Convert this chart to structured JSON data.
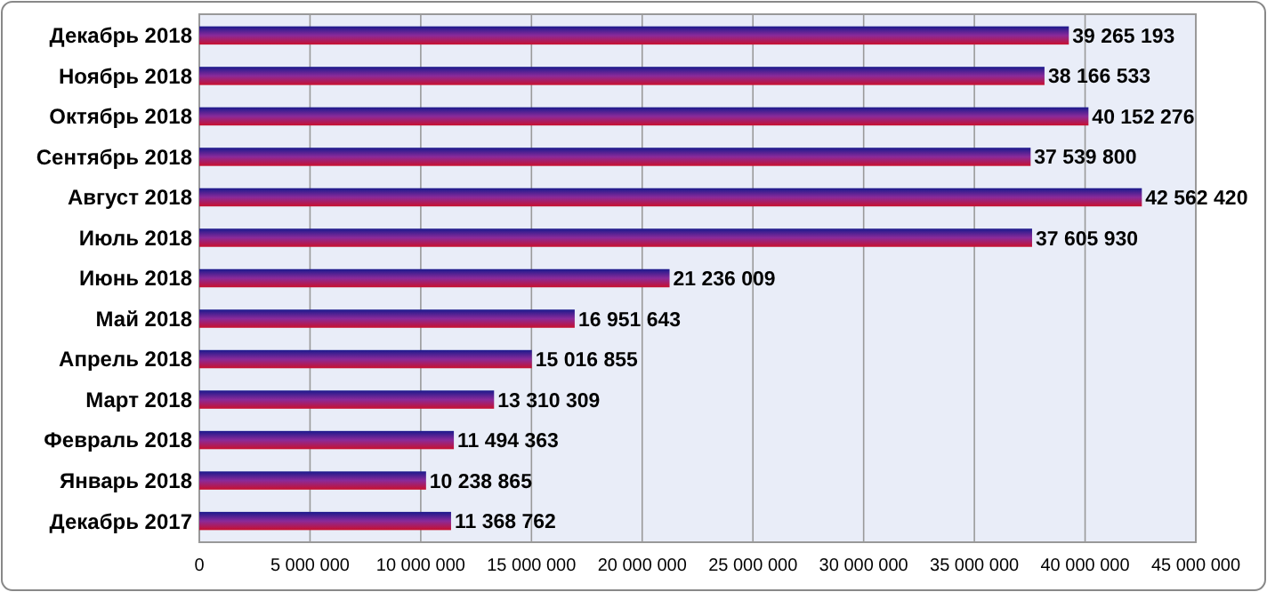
{
  "chart_data": {
    "type": "bar",
    "orientation": "horizontal",
    "grid": "x",
    "categories": [
      "Декабрь 2018",
      "Ноябрь 2018",
      "Октябрь 2018",
      "Сентябрь 2018",
      "Август 2018",
      "Июль 2018",
      "Июнь 2018",
      "Май 2018",
      "Апрель 2018",
      "Март 2018",
      "Февраль 2018",
      "Январь 2018",
      "Декабрь 2017"
    ],
    "values": [
      39265193,
      38166533,
      40152276,
      37539800,
      42562420,
      37605930,
      21236009,
      16951643,
      15016855,
      13310309,
      11494363,
      10238865,
      11368762
    ],
    "value_labels": [
      "39 265 193",
      "38 166 533",
      "40 152 276",
      "37 539 800",
      "42 562 420",
      "37 605 930",
      "21 236 009",
      "16 951 643",
      "15 016 855",
      "13 310 309",
      "11 494 363",
      "10 238 865",
      "11 368 762"
    ],
    "color": "#c8102e",
    "xlim": [
      0,
      45000000
    ],
    "xticks": [
      0,
      {
        "value": 5000000,
        "label": "5 000 000"
      },
      {
        "value": 10000000,
        "label": "10 000 000"
      },
      {
        "value": 15000000,
        "label": "15 000 000"
      },
      {
        "value": 20000000,
        "label": "20 000 000"
      },
      {
        "value": 25000000,
        "label": "25 000 000"
      },
      {
        "value": 30000000,
        "label": "30 000 000"
      },
      {
        "value": 35000000,
        "label": "35 000 000"
      },
      {
        "value": 40000000,
        "label": "40 000 000"
      },
      {
        "value": 45000000,
        "label": "45 000 000"
      }
    ]
  }
}
